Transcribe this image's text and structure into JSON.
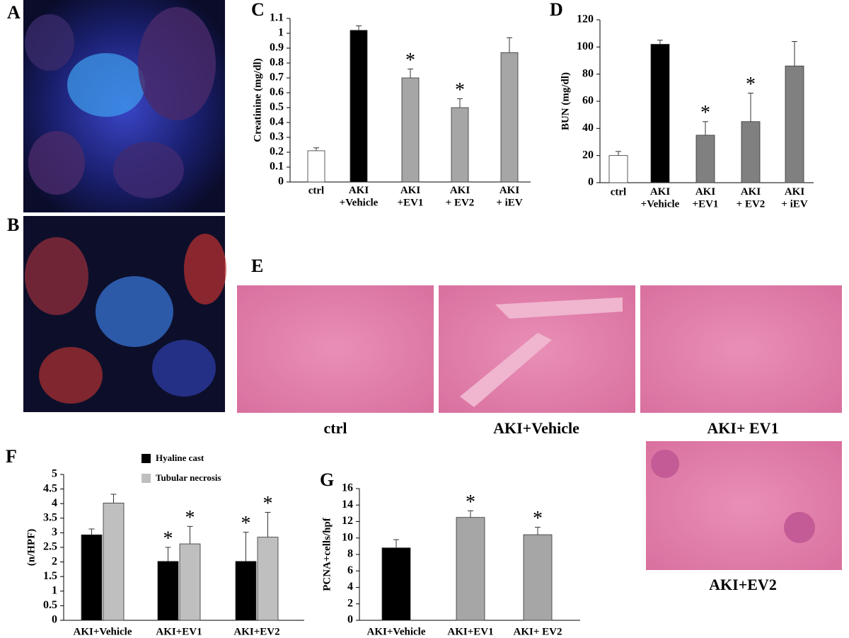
{
  "panels": {
    "A": "A",
    "B": "B",
    "E": "E",
    "captions": [
      "ctrl",
      "AKI+Vehicle",
      "AKI+ EV1",
      "AKI+EV2"
    ]
  },
  "chart_data": [
    {
      "type": "bar",
      "panel_label": "C",
      "ylabel": "Creatinine (mg/dl)",
      "categories": [
        "ctrl",
        "AKI\n+Vehicle",
        "AKI\n+EV1",
        "AKI\n+ EV2",
        "AKI\n+ iEV"
      ],
      "values": [
        0.21,
        1.02,
        0.7,
        0.5,
        0.87
      ],
      "errors": [
        0.02,
        0.03,
        0.06,
        0.06,
        0.1
      ],
      "colors": [
        "#ffffff",
        "#000000",
        "#a6a6a6",
        "#a6a6a6",
        "#a6a6a6"
      ],
      "significance": [
        null,
        null,
        "*",
        "*",
        null
      ],
      "ylim": [
        0,
        1.1
      ],
      "yticks": [
        0,
        0.1,
        0.2,
        0.3,
        0.4,
        0.5,
        0.6,
        0.7,
        0.8,
        0.9,
        1,
        1.1
      ]
    },
    {
      "type": "bar",
      "panel_label": "D",
      "ylabel": "BUN (mg/dl)",
      "categories": [
        "ctrl",
        "AKI\n+Vehicle",
        "AKI\n+EV1",
        "AKI\n+ EV2",
        "AKI\n+ iEV"
      ],
      "values": [
        20,
        102,
        35,
        45,
        86
      ],
      "errors": [
        3,
        3,
        10,
        21,
        18
      ],
      "colors": [
        "#ffffff",
        "#000000",
        "#808080",
        "#808080",
        "#808080"
      ],
      "significance": [
        null,
        null,
        "*",
        "*",
        null
      ],
      "ylim": [
        0,
        120
      ],
      "yticks": [
        0,
        20,
        40,
        60,
        80,
        100,
        120
      ]
    },
    {
      "type": "bar",
      "panel_label": "F",
      "ylabel": "(n/HPF)",
      "categories": [
        "AKI+Vehicle",
        "AKI+EV1",
        "AKI+EV2"
      ],
      "series": [
        {
          "name": "Hyaline cast",
          "color": "#000000",
          "values": [
            2.93,
            2.02,
            2.02
          ],
          "errors": [
            0.2,
            0.48,
            1.0
          ],
          "significance": [
            null,
            "*",
            "*"
          ]
        },
        {
          "name": "Tubular necrosis",
          "color": "#bfbfbf",
          "values": [
            4.02,
            2.62,
            2.85
          ],
          "errors": [
            0.3,
            0.6,
            0.85
          ],
          "significance": [
            null,
            "*",
            "*"
          ]
        }
      ],
      "ylim": [
        0,
        5
      ],
      "yticks": [
        0,
        0.5,
        1,
        1.5,
        2,
        2.5,
        3,
        3.5,
        4,
        4.5,
        5
      ]
    },
    {
      "type": "bar",
      "panel_label": "G",
      "ylabel": "PCNA+cells/hpf",
      "categories": [
        "AKI+Vehicle",
        "AKI+EV1",
        "AKI+ EV2"
      ],
      "values": [
        8.8,
        12.5,
        10.4
      ],
      "errors": [
        1.0,
        0.8,
        0.9
      ],
      "colors": [
        "#000000",
        "#a6a6a6",
        "#a6a6a6"
      ],
      "significance": [
        null,
        "*",
        "*"
      ],
      "ylim": [
        0,
        16
      ],
      "yticks": [
        0,
        2,
        4,
        6,
        8,
        10,
        12,
        14,
        16
      ]
    }
  ]
}
